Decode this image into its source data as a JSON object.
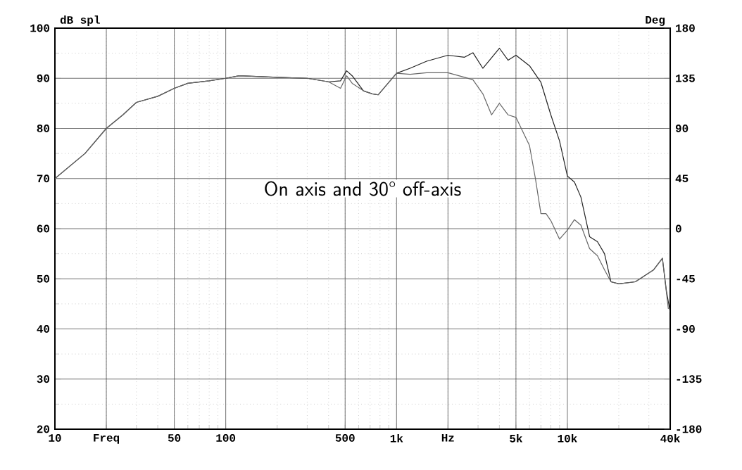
{
  "chart_data": {
    "type": "line",
    "ylabel": "dB spl",
    "y2label": "Deg",
    "annotations": [
      "On axis and 30° off-axis"
    ],
    "log": "x",
    "grid": true,
    "xlim": [
      10,
      40000
    ],
    "ylim": [
      20,
      100
    ],
    "y2lim": [
      -180,
      180
    ],
    "xticks": [
      10,
      {
        "value": 20,
        "label": "Freq"
      },
      50,
      100,
      500,
      {
        "value": 1000,
        "label": "1k"
      },
      {
        "value": 2000,
        "label": "Hz"
      },
      {
        "value": 5000,
        "label": "5k"
      },
      {
        "value": 10000,
        "label": "10k"
      },
      {
        "value": 40000,
        "label": "40k"
      }
    ],
    "yticks": [
      20,
      30,
      40,
      50,
      60,
      70,
      80,
      90,
      100
    ],
    "y2ticks": [
      -180,
      -135,
      -90,
      -45,
      0,
      45,
      90,
      135,
      180
    ],
    "series": [
      {
        "color": "#222222",
        "x": [
          10,
          15,
          20,
          25,
          30,
          40,
          50,
          60,
          80,
          100,
          120,
          200,
          300,
          400,
          470,
          510,
          550,
          640,
          720,
          780,
          1000,
          1200,
          1500,
          2000,
          2500,
          2800,
          3200,
          4000,
          4500,
          5000,
          6000,
          7000,
          8000,
          9000,
          10000,
          11000,
          12000,
          13500,
          15000,
          16500,
          18000,
          20000,
          25000,
          32000,
          36000,
          38000,
          40000
        ],
        "values": [
          70,
          75,
          80,
          82.7,
          85.2,
          86.4,
          88,
          89,
          89.5,
          90,
          90.5,
          90.2,
          90,
          89.3,
          89.5,
          91.5,
          90.5,
          87.5,
          86.9,
          86.7,
          91,
          92,
          93.4,
          94.6,
          94.2,
          95.1,
          92,
          96,
          93.6,
          94.6,
          92.5,
          89.2,
          82.7,
          77.5,
          70.5,
          69.3,
          66.3,
          58.4,
          57.4,
          55,
          49.4,
          49,
          49.4,
          51.8,
          54.1,
          47.6,
          43.3
        ]
      },
      {
        "color": "#666666",
        "x": [
          10,
          15,
          20,
          25,
          30,
          40,
          50,
          60,
          80,
          100,
          120,
          200,
          300,
          400,
          470,
          510,
          550,
          640,
          720,
          780,
          1000,
          1200,
          1500,
          2000,
          2500,
          2800,
          3200,
          3600,
          4000,
          4500,
          5000,
          6000,
          6500,
          7000,
          7500,
          8000,
          9000,
          10000,
          11000,
          12000,
          13500,
          15000,
          16500,
          18000,
          20000,
          25000,
          32000,
          36000,
          39000
        ],
        "values": [
          70,
          75,
          80,
          82.7,
          85.2,
          86.4,
          88,
          89,
          89.5,
          90,
          90.5,
          90.2,
          90,
          89.3,
          88,
          90.5,
          89,
          87.5,
          86.9,
          86.7,
          91,
          90.8,
          91.1,
          91.1,
          90.2,
          89.7,
          86.9,
          82.7,
          85,
          82.7,
          82.2,
          76.6,
          70,
          63,
          63,
          61.6,
          57.9,
          59.7,
          61.8,
          60.7,
          56,
          54.6,
          51.8,
          49.4,
          49,
          49.4,
          51.8,
          54.1,
          44
        ]
      }
    ]
  }
}
